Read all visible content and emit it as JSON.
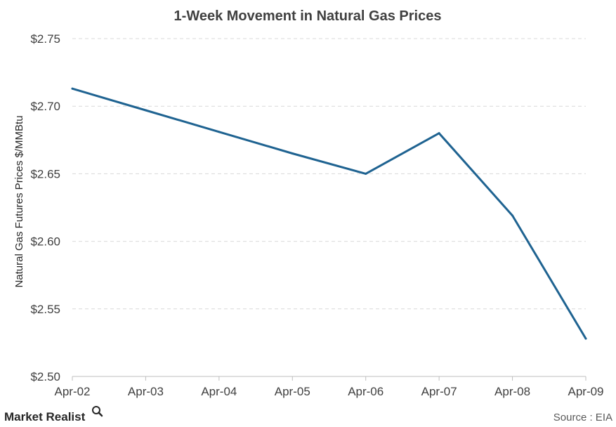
{
  "chart_data": {
    "type": "line",
    "title": "1-Week Movement in Natural Gas Prices",
    "ylabel": "Natural Gas Futures Prices $/MMBtu",
    "xlabel": "",
    "categories": [
      "Apr-02",
      "Apr-03",
      "Apr-04",
      "Apr-05",
      "Apr-06",
      "Apr-07",
      "Apr-08",
      "Apr-09"
    ],
    "values": [
      2.713,
      2.697,
      2.681,
      2.665,
      2.65,
      2.68,
      2.619,
      2.528
    ],
    "ylim": [
      2.5,
      2.75
    ],
    "yticks": [
      2.5,
      2.55,
      2.6,
      2.65,
      2.7,
      2.75
    ],
    "ytick_labels": [
      "$2.50",
      "$2.55",
      "$2.60",
      "$2.65",
      "$2.70",
      "$2.75"
    ],
    "grid": true,
    "legend": "none",
    "line_color": "#1f6391"
  },
  "footer": {
    "brand": "Market Realist",
    "source": "Source : EIA"
  }
}
